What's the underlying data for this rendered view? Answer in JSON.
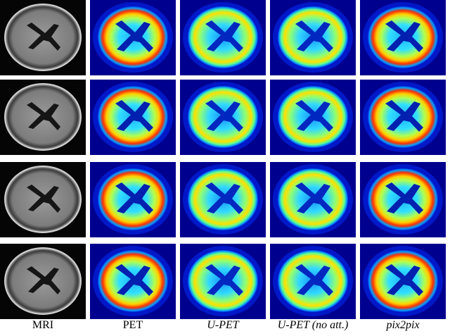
{
  "column_labels": [
    "MRI",
    "PET",
    "U-PET",
    "U-PET (no att.)",
    "pix2pix"
  ]
}
